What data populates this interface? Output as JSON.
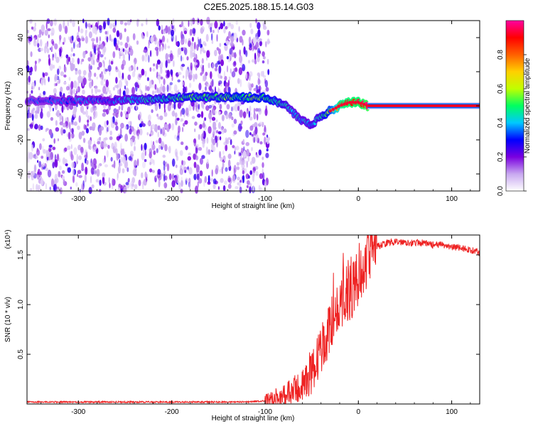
{
  "title": "C2E5.2025.188.15.14.G03",
  "chart_data": [
    {
      "type": "heatmap",
      "xlabel": "Height of straight line (km)",
      "ylabel": "Frequency (Hz)",
      "xlim": [
        -355,
        130
      ],
      "ylim": [
        -50,
        50
      ],
      "xticks": [
        -300,
        -200,
        -100,
        0,
        100
      ],
      "yticks": [
        -40,
        -20,
        0,
        20,
        40
      ],
      "colorbar": {
        "label": "Normalized spectral amplitude",
        "range": [
          0,
          1
        ],
        "ticks": [
          "0.0",
          "0.2",
          "0.4",
          "0.6",
          "0.8"
        ],
        "colors": [
          "#ffffff",
          "#c8a8f0",
          "#7a00e0",
          "#0000ff",
          "#00c8ff",
          "#00ff60",
          "#c0ff00",
          "#ffd000",
          "#ff6000",
          "#ff0000",
          "#ff00a0"
        ]
      },
      "noise_region_x": [
        -355,
        -100
      ],
      "ridge": {
        "x": [
          -355,
          -300,
          -270,
          -220,
          -180,
          -150,
          -120,
          -100,
          -90,
          -80,
          -70,
          -60,
          -50,
          -40,
          -30,
          -20,
          -10,
          0,
          10,
          130
        ],
        "y": [
          3,
          3,
          3,
          4,
          5,
          5,
          5,
          5,
          3,
          1,
          -4,
          -9,
          -11,
          -6,
          -3,
          0,
          2,
          2,
          0,
          0
        ],
        "amplitude": [
          0.3,
          0.35,
          0.35,
          0.45,
          0.5,
          0.5,
          0.55,
          0.55,
          0.5,
          0.45,
          0.4,
          0.4,
          0.4,
          0.45,
          0.6,
          0.85,
          0.9,
          0.9,
          0.95,
          0.95
        ]
      },
      "grid": false
    },
    {
      "type": "line",
      "xlabel": "Height of straight line (km)",
      "ylabel": "SNR (10 * v/v)",
      "y_multiplier": "(x10⁴)",
      "xlim": [
        -355,
        130
      ],
      "ylim": [
        0,
        1.7
      ],
      "xticks": [
        -300,
        -200,
        -100,
        0,
        100
      ],
      "yticks": [
        "0.5",
        "1.0",
        "1.5"
      ],
      "ytick_values": [
        0.5,
        1.0,
        1.5
      ],
      "series": [
        {
          "color": "#ee2222",
          "x": [
            -355,
            -300,
            -250,
            -200,
            -150,
            -120,
            -100,
            -90,
            -80,
            -70,
            -60,
            -50,
            -45,
            -40,
            -35,
            -30,
            -25,
            -20,
            -15,
            -10,
            -5,
            0,
            5,
            10,
            15,
            20,
            25,
            30,
            40,
            50,
            60,
            70,
            80,
            90,
            100,
            110,
            120,
            130
          ],
          "y": [
            0.02,
            0.02,
            0.02,
            0.02,
            0.02,
            0.02,
            0.03,
            0.05,
            0.08,
            0.12,
            0.18,
            0.3,
            0.42,
            0.55,
            0.65,
            0.78,
            0.92,
            1.0,
            1.1,
            1.15,
            1.2,
            1.3,
            1.4,
            1.48,
            1.55,
            1.58,
            1.6,
            1.62,
            1.63,
            1.63,
            1.62,
            1.62,
            1.6,
            1.6,
            1.58,
            1.57,
            1.55,
            1.52
          ]
        }
      ],
      "grid": false
    }
  ]
}
